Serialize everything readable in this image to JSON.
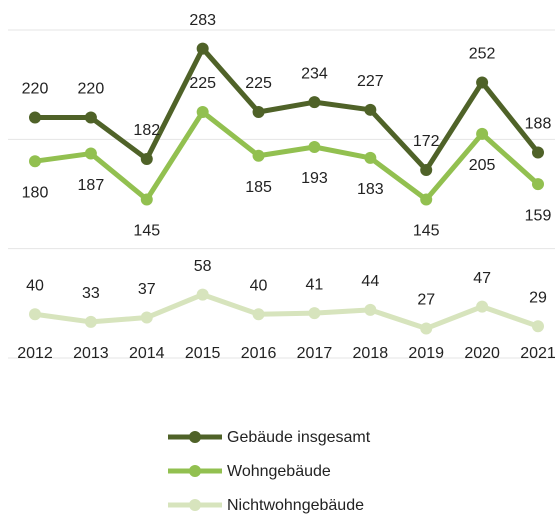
{
  "chart_data": {
    "type": "line",
    "categories": [
      "2012",
      "2013",
      "2014",
      "2015",
      "2016",
      "2017",
      "2018",
      "2019",
      "2020",
      "2021"
    ],
    "series": [
      {
        "name": "Gebäude insgesamt",
        "color": "#4f6228",
        "values": [
          220,
          220,
          182,
          283,
          225,
          234,
          227,
          172,
          252,
          188
        ]
      },
      {
        "name": "Wohngebäude",
        "color": "#92c050",
        "values": [
          180,
          187,
          145,
          225,
          185,
          193,
          183,
          145,
          205,
          159
        ]
      },
      {
        "name": "Nichtwohngebäude",
        "color": "#d7e4bd",
        "values": [
          40,
          33,
          37,
          58,
          40,
          41,
          44,
          27,
          47,
          29
        ]
      }
    ],
    "ylim": [
      0,
      300
    ],
    "yticks": [
      0,
      100,
      200,
      300
    ],
    "grid": true,
    "legend": "bottom"
  }
}
